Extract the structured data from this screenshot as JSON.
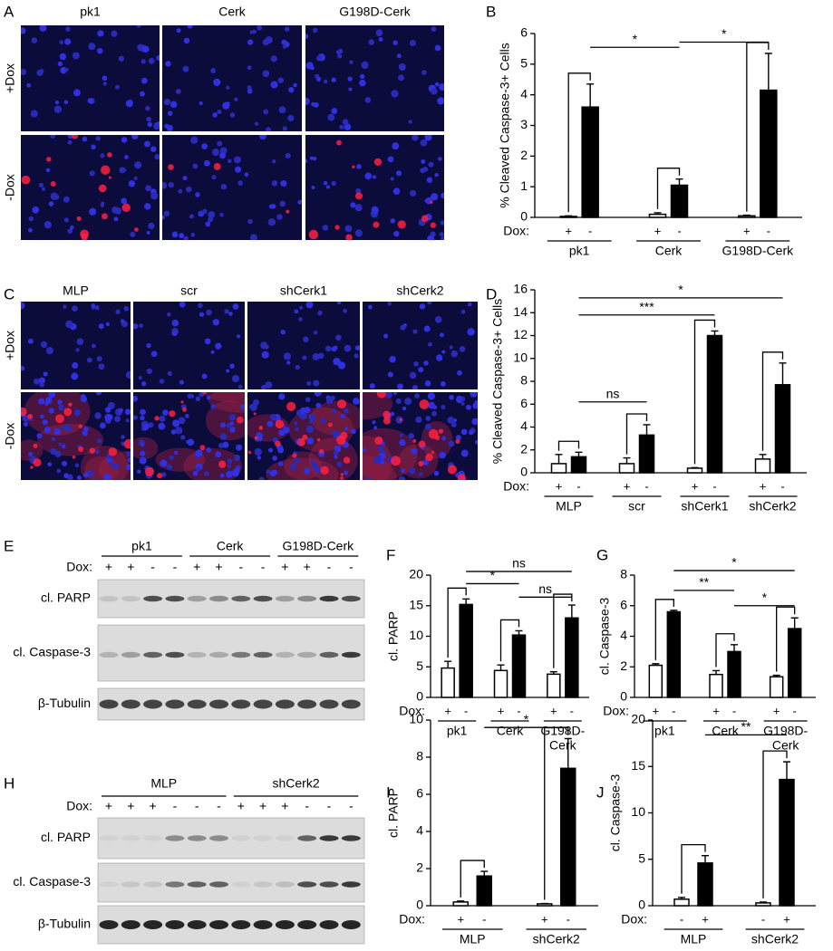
{
  "panel_letters": [
    "A",
    "B",
    "C",
    "D",
    "E",
    "F",
    "G",
    "H",
    "I",
    "J"
  ],
  "panel_a": {
    "columns": [
      "pk1",
      "Cerk",
      "G198D-Cerk"
    ],
    "rows": [
      "+Dox",
      "-Dox"
    ]
  },
  "panel_c": {
    "columns": [
      "MLP",
      "scr",
      "shCerk1",
      "shCerk2"
    ],
    "rows": [
      "+Dox",
      "-Dox"
    ]
  },
  "panel_e": {
    "groups": [
      "pk1",
      "Cerk",
      "G198D-Cerk"
    ],
    "dox_label": "Dox:",
    "dox": [
      "+",
      "+",
      "-",
      "-",
      "+",
      "+",
      "-",
      "-",
      "+",
      "+",
      "-",
      "-"
    ],
    "rows": [
      "cl. PARP",
      "cl. Caspase-3",
      "β-Tubulin"
    ]
  },
  "panel_h": {
    "groups": [
      "MLP",
      "shCerk2"
    ],
    "dox_label": "Dox:",
    "dox": [
      "+",
      "+",
      "+",
      "-",
      "-",
      "-",
      "+",
      "+",
      "+",
      "-",
      "-",
      "-"
    ],
    "rows": [
      "cl. PARP",
      "cl. Caspase-3",
      "β-Tubulin"
    ]
  },
  "chart_data": [
    {
      "type": "bar",
      "y_label": "% Cleaved Caspase-3+ Cells",
      "x_label": "Dox:",
      "categories": [
        "pk1",
        "Cerk",
        "G198D-Cerk"
      ],
      "series": [
        {
          "name": "+",
          "color": "#ffffff",
          "values": [
            0.03,
            0.1,
            0.05
          ],
          "errors": [
            0.02,
            0.05,
            0.02
          ]
        },
        {
          "name": "-",
          "color": "#000000",
          "values": [
            3.6,
            1.05,
            4.15
          ],
          "errors": [
            0.75,
            0.2,
            1.2
          ]
        }
      ],
      "ylim": [
        0,
        6
      ],
      "yticks": [
        0,
        1,
        2,
        3,
        4,
        5,
        6
      ],
      "annotations": [
        "*",
        "*"
      ]
    },
    {
      "type": "bar",
      "y_label": "% Cleaved Caspase-3+ Cells",
      "x_label": "Dox:",
      "categories": [
        "MLP",
        "scr",
        "shCerk1",
        "shCerk2"
      ],
      "series": [
        {
          "name": "+",
          "color": "#ffffff",
          "values": [
            0.8,
            0.8,
            0.4,
            1.2
          ],
          "errors": [
            0.8,
            0.5,
            0.05,
            0.4
          ]
        },
        {
          "name": "-",
          "color": "#000000",
          "values": [
            1.4,
            3.3,
            12,
            7.7
          ],
          "errors": [
            0.4,
            0.9,
            0.4,
            1.9
          ]
        }
      ],
      "ylim": [
        0,
        16
      ],
      "yticks": [
        0,
        2,
        4,
        6,
        8,
        10,
        12,
        14,
        16
      ],
      "annotations": [
        "ns",
        "***",
        "*"
      ]
    },
    {
      "type": "bar",
      "y_label": "cl. PARP",
      "x_label": "Dox:",
      "categories": [
        "pk1",
        "Cerk",
        [
          "G198D-",
          "Cerk"
        ]
      ],
      "series": [
        {
          "name": "+",
          "color": "#ffffff",
          "values": [
            4.8,
            4.4,
            3.8
          ],
          "errors": [
            1.1,
            0.9,
            0.4
          ]
        },
        {
          "name": "-",
          "color": "#000000",
          "values": [
            15.2,
            10.2,
            13
          ],
          "errors": [
            0.9,
            0.7,
            2.1
          ]
        }
      ],
      "ylim": [
        0,
        20
      ],
      "yticks": [
        0,
        5,
        10,
        15,
        20
      ],
      "annotations": [
        "ns",
        "*",
        "ns"
      ]
    },
    {
      "type": "bar",
      "y_label": "cl. Caspase-3",
      "x_label": "Dox:",
      "categories": [
        "pk1",
        "Cerk",
        [
          "G198D-",
          "Cerk"
        ]
      ],
      "series": [
        {
          "name": "+",
          "color": "#ffffff",
          "values": [
            2.1,
            1.5,
            1.35
          ],
          "errors": [
            0.1,
            0.25,
            0.1
          ]
        },
        {
          "name": "-",
          "color": "#000000",
          "values": [
            5.6,
            3.0,
            4.5
          ],
          "errors": [
            0.1,
            0.45,
            0.7
          ]
        }
      ],
      "ylim": [
        0,
        8
      ],
      "yticks": [
        0,
        2,
        4,
        6,
        8
      ],
      "annotations": [
        "*",
        "**",
        "*"
      ]
    },
    {
      "type": "bar",
      "y_label": "cl. PARP",
      "x_label": "Dox:",
      "categories": [
        "MLP",
        "shCerk2"
      ],
      "series": [
        {
          "name": "+",
          "color": "#ffffff",
          "values": [
            0.2,
            0.1
          ],
          "errors": [
            0.05,
            0.02
          ]
        },
        {
          "name": "-",
          "color": "#000000",
          "values": [
            1.6,
            7.4
          ],
          "errors": [
            0.25,
            1.6
          ]
        }
      ],
      "ylim": [
        0,
        10
      ],
      "yticks": [
        0,
        2,
        4,
        6,
        8,
        10
      ],
      "annotations": [
        "*"
      ]
    },
    {
      "type": "bar",
      "y_label": "cl. Caspase-3",
      "x_label": "Dox:",
      "categories": [
        "MLP",
        "shCerk2"
      ],
      "series": [
        {
          "name": "-",
          "color": "#ffffff",
          "values": [
            0.7,
            0.3
          ],
          "errors": [
            0.2,
            0.1
          ]
        },
        {
          "name": "+",
          "color": "#000000",
          "values": [
            4.6,
            13.6
          ],
          "errors": [
            0.8,
            1.9
          ]
        }
      ],
      "ylim": [
        0,
        20
      ],
      "yticks": [
        0,
        5,
        10,
        15,
        20
      ],
      "annotations": [
        "**"
      ]
    }
  ]
}
